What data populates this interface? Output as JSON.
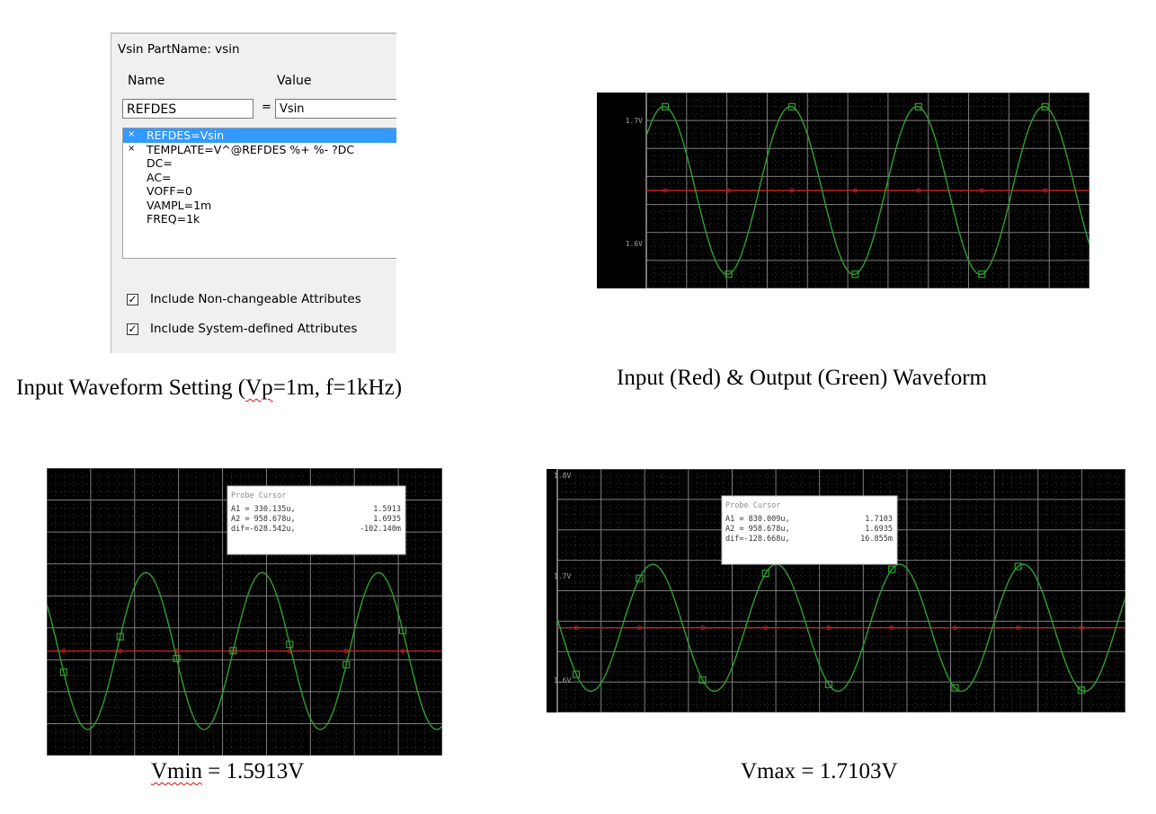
{
  "property_editor": {
    "title": "Vsin   PartName: vsin",
    "name_header": "Name",
    "value_header": "Value",
    "name_value": "REFDES",
    "equals": "=",
    "value_value": "Vsin",
    "attributes": [
      {
        "mark": "×",
        "text": "REFDES=Vsin",
        "selected": true
      },
      {
        "mark": "×",
        "text": "TEMPLATE=V^@REFDES %+ %- ?DC",
        "selected": false
      },
      {
        "mark": "",
        "text": "DC=",
        "selected": false
      },
      {
        "mark": "",
        "text": "AC=",
        "selected": false
      },
      {
        "mark": "",
        "text": "VOFF=0",
        "selected": false
      },
      {
        "mark": "",
        "text": "VAMPL=1m",
        "selected": false
      },
      {
        "mark": "",
        "text": "FREQ=1k",
        "selected": false
      }
    ],
    "checkboxes": [
      {
        "label": "Include Non-changeable Attributes",
        "checked": true
      },
      {
        "label": "Include System-defined Attributes",
        "checked": true
      }
    ]
  },
  "captions": {
    "input_setting_pre": "Input Waveform Setting (",
    "input_setting_marked": "Vp",
    "input_setting_post": "=1m, f=1kHz)",
    "waveform": "Input (Red) & Output (Green) Waveform",
    "vmin_marked": "Vmin",
    "vmin_post": " = 1.5913V",
    "vmax": "Vmax = 1.7103V"
  },
  "colors": {
    "plot_background": "#000000",
    "grid": "#7f7f7f",
    "input_trace": "#c02020",
    "output_trace": "#2fa02f",
    "spellcheck_underline": "#d21010"
  },
  "chart_data": [
    {
      "type": "line",
      "name": "plot1",
      "ytick_labels": [
        "1.7V",
        "1.6V"
      ],
      "ylim": [
        1.58,
        1.72
      ],
      "x": [
        0,
        3.5
      ],
      "series": [
        {
          "role": "input",
          "color": "#c02020",
          "offset": 1.65,
          "amplitude": 0.0
        },
        {
          "role": "output",
          "color": "#2fa02f",
          "offset": 1.65,
          "amplitude": 0.06,
          "frequency": 1,
          "phase": 0.7
        }
      ]
    },
    {
      "type": "line",
      "name": "plot-vmin",
      "ytick_labels": [],
      "ylim": [
        1.57,
        1.79
      ],
      "x": [
        0,
        3.4
      ],
      "series": [
        {
          "role": "input",
          "color": "#c02020",
          "offset": 1.65,
          "amplitude": 0.0
        },
        {
          "role": "output",
          "color": "#2fa02f",
          "offset": 1.65,
          "amplitude": 0.06,
          "frequency": 1,
          "phase": 2.5
        }
      ],
      "probe_cursor": {
        "title": "Probe Cursor",
        "rows": [
          {
            "label": "A1 = 330.135u,",
            "value": "1.5913"
          },
          {
            "label": "A2 = 958.678u,",
            "value": "1.6935"
          },
          {
            "label": "dif=-628.542u,",
            "value": "-102.140m"
          }
        ]
      }
    },
    {
      "type": "line",
      "name": "plot-vmax",
      "ytick_labels": [
        "1.8V",
        "1.7V",
        "1.6V"
      ],
      "ylim": [
        1.57,
        1.8
      ],
      "x": [
        0,
        4.6
      ],
      "series": [
        {
          "role": "input",
          "color": "#c02020",
          "offset": 1.65,
          "amplitude": 0.0
        },
        {
          "role": "output",
          "color": "#2fa02f",
          "offset": 1.65,
          "amplitude": 0.06,
          "frequency": 1,
          "phase": 3.0
        }
      ],
      "probe_cursor": {
        "title": "Probe Cursor",
        "rows": [
          {
            "label": "A1 = 830.009u,",
            "value": "1.7103"
          },
          {
            "label": "A2 = 958.678u,",
            "value": "1.6935"
          },
          {
            "label": "dif=-128.668u,",
            "value": "16.855m"
          }
        ]
      }
    }
  ]
}
